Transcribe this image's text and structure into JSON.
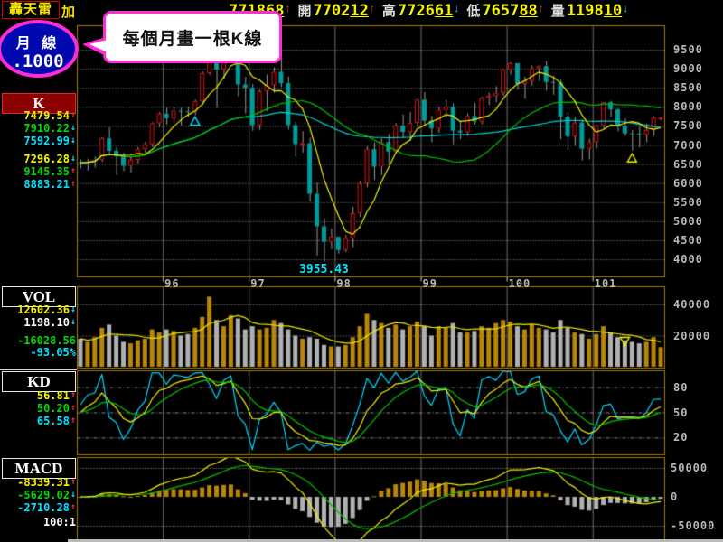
{
  "app": {
    "brand": "轟天雷",
    "suffix": "加"
  },
  "mode_badge": {
    "line1": "月 線",
    "line2": ".1000"
  },
  "tooltip_bubble": {
    "text": "每個月畫一根K線"
  },
  "quote_bar": {
    "close": {
      "value": "771868",
      "dir": "up"
    },
    "items": [
      {
        "label": "開",
        "value": "770212",
        "dir": "up"
      },
      {
        "label": "高",
        "value": "772661",
        "dir": "down"
      },
      {
        "label": "低",
        "value": "765788",
        "dir": "up"
      },
      {
        "label": "量",
        "value": "119810",
        "dir": "down"
      }
    ]
  },
  "panels": {
    "k": {
      "title": "K",
      "rows": [
        {
          "text": "7479.54",
          "color": "yellow",
          "dir": "up"
        },
        {
          "text": "7910.22",
          "color": "green",
          "dir": "down"
        },
        {
          "text": "7592.99",
          "color": "cyan",
          "dir": "down"
        },
        {
          "gap": true
        },
        {
          "text": "7296.28",
          "color": "yellow",
          "dir": "down"
        },
        {
          "text": "9145.35",
          "color": "green",
          "dir": "up"
        },
        {
          "text": "8883.21",
          "color": "cyan",
          "dir": "up"
        }
      ]
    },
    "vol": {
      "title": "VOL",
      "rows": [
        {
          "text": "12602.36",
          "color": "yellow",
          "dir": "down"
        },
        {
          "text": "1198.10",
          "color": "white",
          "dir": "down"
        },
        {
          "gap": true
        },
        {
          "text": "-16028.56",
          "color": "green"
        },
        {
          "text": "-93.05%",
          "color": "cyan"
        }
      ]
    },
    "kd": {
      "title": "KD",
      "rows": [
        {
          "text": "56.81",
          "color": "yellow",
          "dir": "up"
        },
        {
          "text": "50.20",
          "color": "green",
          "dir": "up"
        },
        {
          "text": "65.58",
          "color": "cyan",
          "dir": "up"
        }
      ]
    },
    "macd": {
      "title": "MACD",
      "rows": [
        {
          "text": "-8339.31",
          "color": "yellow",
          "dir": "up"
        },
        {
          "text": "-5629.02",
          "color": "green",
          "dir": "down"
        },
        {
          "text": "-2710.28",
          "color": "cyan",
          "dir": "up"
        }
      ],
      "scale_note": "100:1"
    }
  },
  "axes": {
    "low_label": "3955.43"
  },
  "colors": {
    "yellow": "#f5f500",
    "green": "#00d800",
    "cyan": "#00e5ff",
    "white": "#ffffff",
    "up_arrow": "#ff3232",
    "down_arrow": "#00e5ff",
    "candle_up": "#e01010",
    "candle_down": "#009c9c",
    "wick": "#9a9a9a",
    "ma_short": "#f0f000",
    "ma_mid": "#00c000",
    "ma_long": "#00cfcf",
    "vol_up": "#b8860b",
    "vol_down": "#b0b0b0",
    "vol_ma": "#e8e800",
    "kd_rsv": "#00d8ff",
    "kd_k": "#f0f000",
    "kd_d": "#00c800",
    "macd_dif": "#f0f000",
    "macd_dea": "#00c000",
    "osc_pos": "#b8860b",
    "osc_neg": "#b0b0b0",
    "border": "#a87800",
    "grid": "#9a9a9a",
    "vgrid": "#6e6e6e",
    "axis_text": "#b8b8b8"
  },
  "chart_data": {
    "type": "candlestick",
    "start_month_label": "95-01",
    "months": 82,
    "ohlc": [
      [
        6549,
        6620,
        6406,
        6532
      ],
      [
        6532,
        6651,
        6344,
        6561
      ],
      [
        6561,
        6713,
        6421,
        6614
      ],
      [
        6614,
        7215,
        6570,
        7172
      ],
      [
        7172,
        7476,
        6770,
        6847
      ],
      [
        6847,
        6950,
        6232,
        6704
      ],
      [
        6704,
        6810,
        6327,
        6454
      ],
      [
        6454,
        6698,
        6290,
        6611
      ],
      [
        6611,
        6957,
        6533,
        6885
      ],
      [
        6885,
        7093,
        6802,
        7021
      ],
      [
        7021,
        7610,
        6960,
        7568
      ],
      [
        7568,
        7875,
        7482,
        7823
      ],
      [
        7823,
        7987,
        7550,
        7699
      ],
      [
        7699,
        7999,
        7577,
        7901
      ],
      [
        7901,
        7989,
        7520,
        7884
      ],
      [
        7884,
        8020,
        7743,
        7875
      ],
      [
        7875,
        8200,
        7791,
        8145
      ],
      [
        8145,
        8939,
        8061,
        8883
      ],
      [
        8883,
        9744,
        8844,
        9287
      ],
      [
        9287,
        9387,
        7987,
        8982
      ],
      [
        8982,
        9539,
        8738,
        9476
      ],
      [
        9476,
        9859,
        9337,
        9711
      ],
      [
        9711,
        9783,
        8289,
        8586
      ],
      [
        8586,
        8795,
        7836,
        8506
      ],
      [
        8506,
        8611,
        7384,
        7521
      ],
      [
        7521,
        8469,
        7408,
        8412
      ],
      [
        8412,
        8859,
        7900,
        8572
      ],
      [
        8572,
        9049,
        8377,
        8919
      ],
      [
        8919,
        9309,
        8532,
        8619
      ],
      [
        8619,
        8807,
        7417,
        7523
      ],
      [
        7523,
        7618,
        6708,
        7024
      ],
      [
        7024,
        7376,
        6810,
        7046
      ],
      [
        7046,
        7203,
        5530,
        5719
      ],
      [
        5719,
        6025,
        4110,
        4870
      ],
      [
        4870,
        5095,
        3955,
        4460
      ],
      [
        4460,
        4817,
        4280,
        4591
      ],
      [
        4591,
        4608,
        4164,
        4248
      ],
      [
        4248,
        4651,
        4198,
        4557
      ],
      [
        4557,
        5392,
        4328,
        5210
      ],
      [
        5210,
        6071,
        5124,
        5992
      ],
      [
        5992,
        6976,
        5903,
        6890
      ],
      [
        6890,
        7084,
        6100,
        6432
      ],
      [
        6432,
        7186,
        6219,
        7077
      ],
      [
        7077,
        7300,
        6500,
        6825
      ],
      [
        6825,
        7586,
        6789,
        7509
      ],
      [
        7509,
        7811,
        7196,
        7340
      ],
      [
        7340,
        7875,
        7123,
        7582
      ],
      [
        7582,
        8219,
        7490,
        8188
      ],
      [
        8188,
        8395,
        7512,
        7640
      ],
      [
        7640,
        7773,
        7080,
        7436
      ],
      [
        7436,
        8011,
        7329,
        7920
      ],
      [
        7920,
        8190,
        7732,
        8004
      ],
      [
        8004,
        8106,
        7032,
        7374
      ],
      [
        7374,
        7620,
        7162,
        7329
      ],
      [
        7329,
        7842,
        7251,
        7760
      ],
      [
        7760,
        8121,
        7544,
        7616
      ],
      [
        7616,
        8282,
        7559,
        8237
      ],
      [
        8237,
        8387,
        8057,
        8287
      ],
      [
        8287,
        8554,
        8135,
        8372
      ],
      [
        8372,
        8990,
        8296,
        8972
      ],
      [
        8972,
        9178,
        8860,
        9145
      ],
      [
        9145,
        9146,
        8465,
        8599
      ],
      [
        8599,
        8801,
        8221,
        8683
      ],
      [
        8683,
        9101,
        8568,
        9008
      ],
      [
        9008,
        9099,
        8690,
        9068
      ],
      [
        9068,
        9220,
        8433,
        8652
      ],
      [
        8652,
        8820,
        8331,
        8644
      ],
      [
        8644,
        8720,
        7161,
        7741
      ],
      [
        7741,
        7876,
        6877,
        7225
      ],
      [
        7225,
        7743,
        6997,
        7587
      ],
      [
        7587,
        7688,
        6609,
        6904
      ],
      [
        6904,
        7178,
        6633,
        7072
      ],
      [
        7072,
        7549,
        6917,
        7517
      ],
      [
        7517,
        8137,
        7433,
        8121
      ],
      [
        8121,
        8170,
        7743,
        7933
      ],
      [
        7933,
        7969,
        7374,
        7501
      ],
      [
        7501,
        7707,
        7247,
        7301
      ],
      [
        7301,
        7406,
        6857,
        7296
      ],
      [
        7296,
        7490,
        6950,
        7270
      ],
      [
        7270,
        7571,
        7087,
        7397
      ],
      [
        7397,
        7769,
        7251,
        7715
      ],
      [
        7702,
        7727,
        7658,
        7719
      ]
    ],
    "volumes": [
      18000,
      16000,
      19000,
      25000,
      27000,
      20000,
      16000,
      15000,
      17000,
      18000,
      24000,
      22000,
      24000,
      23000,
      20000,
      21000,
      25000,
      32000,
      45000,
      30000,
      26000,
      33000,
      31000,
      24000,
      26000,
      24000,
      25000,
      30000,
      28000,
      24000,
      20000,
      18000,
      19000,
      18000,
      14000,
      13000,
      13000,
      14000,
      19000,
      26000,
      34000,
      30000,
      28000,
      25000,
      27000,
      24000,
      26000,
      29000,
      26000,
      20000,
      26000,
      25000,
      28000,
      22000,
      22000,
      23000,
      26000,
      25000,
      28000,
      30000,
      29000,
      26000,
      24000,
      27000,
      25000,
      24000,
      22000,
      30000,
      25000,
      22000,
      21000,
      18000,
      21000,
      26000,
      22000,
      19000,
      17000,
      16000,
      15000,
      16000,
      19000,
      12600
    ],
    "ma_windows": {
      "short": 6,
      "mid": 24,
      "long": 60
    },
    "kd_window": 9,
    "macd": {
      "fast": 12,
      "slow": 26,
      "signal": 9,
      "value_scale": 100
    },
    "main_y_ticks": [
      9500,
      9000,
      8500,
      8000,
      7500,
      7000,
      6500,
      6000,
      5500,
      5000,
      4500,
      4000
    ],
    "vol_y_ticks": [
      40000,
      20000
    ],
    "kd_y_ticks": [
      80,
      50,
      20
    ],
    "macd_y_ticks": [
      50000,
      0,
      -50000
    ],
    "year_ticks": [
      {
        "label": "96",
        "month_index": 12
      },
      {
        "label": "97",
        "month_index": 24
      },
      {
        "label": "98",
        "month_index": 36
      },
      {
        "label": "99",
        "month_index": 48
      },
      {
        "label": "100",
        "month_index": 60
      },
      {
        "label": "101",
        "month_index": 72
      }
    ],
    "low_annotation": {
      "text": "3955.43",
      "month_index": 34,
      "price": 3955
    },
    "markers": [
      {
        "shape": "triangle-up",
        "panel": "main",
        "color": "#00e5ff",
        "month_index": 16,
        "price": 7620
      },
      {
        "shape": "triangle-up",
        "panel": "main",
        "color": "#f0f000",
        "month_index": 77,
        "price": 6650
      },
      {
        "shape": "triangle-down",
        "panel": "vol",
        "color": "#f0f000",
        "month_index": 76,
        "value": 16500
      }
    ]
  }
}
